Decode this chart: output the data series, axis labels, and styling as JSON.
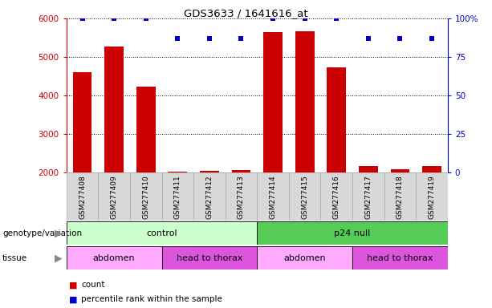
{
  "title": "GDS3633 / 1641616_at",
  "samples": [
    "GSM277408",
    "GSM277409",
    "GSM277410",
    "GSM277411",
    "GSM277412",
    "GSM277413",
    "GSM277414",
    "GSM277415",
    "GSM277416",
    "GSM277417",
    "GSM277418",
    "GSM277419"
  ],
  "counts": [
    4600,
    5280,
    4220,
    2020,
    2040,
    2060,
    5650,
    5670,
    4730,
    2170,
    2090,
    2160
  ],
  "percentile_ranks_pct": [
    100,
    100,
    100,
    87,
    87,
    87,
    100,
    100,
    100,
    87,
    87,
    87
  ],
  "ylim_left": [
    2000,
    6000
  ],
  "ylim_right": [
    0,
    100
  ],
  "yticks_left": [
    2000,
    3000,
    4000,
    5000,
    6000
  ],
  "yticks_right": [
    0,
    25,
    50,
    75,
    100
  ],
  "bar_color": "#cc0000",
  "dot_color": "#0000cc",
  "bar_width": 0.6,
  "genotype_groups": [
    {
      "label": "control",
      "start": 0,
      "end": 6,
      "color": "#ccffcc"
    },
    {
      "label": "p24 null",
      "start": 6,
      "end": 12,
      "color": "#55cc55"
    }
  ],
  "tissue_groups": [
    {
      "label": "abdomen",
      "start": 0,
      "end": 3,
      "color": "#ffaaff"
    },
    {
      "label": "head to thorax",
      "start": 3,
      "end": 6,
      "color": "#dd55dd"
    },
    {
      "label": "abdomen",
      "start": 6,
      "end": 9,
      "color": "#ffaaff"
    },
    {
      "label": "head to thorax",
      "start": 9,
      "end": 12,
      "color": "#dd55dd"
    }
  ],
  "legend_count_color": "#cc0000",
  "legend_dot_color": "#0000cc",
  "left_axis_color": "#cc0000",
  "right_axis_color": "#0000cc",
  "xtick_bg_color": "#d8d8d8",
  "xtick_border_color": "#aaaaaa"
}
